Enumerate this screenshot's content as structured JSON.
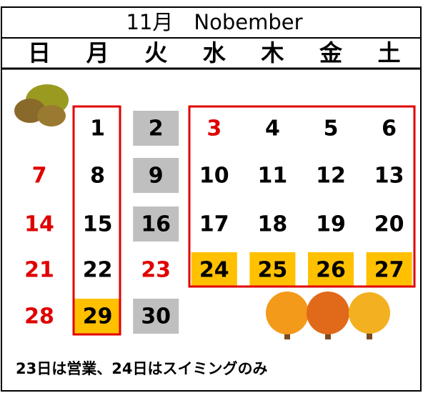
{
  "header": {
    "title": "11月　Nobember"
  },
  "weekdays": [
    "日",
    "月",
    "火",
    "水",
    "木",
    "金",
    "土"
  ],
  "weeks": [
    [
      null,
      {
        "day": 1
      },
      {
        "day": 2,
        "bg": "#bfbfbf"
      },
      {
        "day": 3,
        "color": "#e00000"
      },
      {
        "day": 4
      },
      {
        "day": 5
      },
      {
        "day": 6
      }
    ],
    [
      {
        "day": 7,
        "color": "#e00000"
      },
      {
        "day": 8
      },
      {
        "day": 9,
        "bg": "#bfbfbf"
      },
      {
        "day": 10
      },
      {
        "day": 11
      },
      {
        "day": 12
      },
      {
        "day": 13
      }
    ],
    [
      {
        "day": 14,
        "color": "#e00000"
      },
      {
        "day": 15
      },
      {
        "day": 16,
        "bg": "#bfbfbf"
      },
      {
        "day": 17
      },
      {
        "day": 18
      },
      {
        "day": 19
      },
      {
        "day": 20
      }
    ],
    [
      {
        "day": 21,
        "color": "#e00000"
      },
      {
        "day": 22
      },
      {
        "day": 23,
        "color": "#e00000"
      },
      {
        "day": 24,
        "bg": "#ffc000"
      },
      {
        "day": 25,
        "bg": "#ffc000"
      },
      {
        "day": 26,
        "bg": "#ffc000"
      },
      {
        "day": 27,
        "bg": "#ffc000"
      }
    ],
    [
      {
        "day": 28,
        "color": "#e00000"
      },
      {
        "day": 29,
        "bg": "#ffc000"
      },
      {
        "day": 30,
        "bg": "#bfbfbf"
      },
      null,
      null,
      null,
      null
    ]
  ],
  "note": "23日は営業、24日はスイミングのみ"
}
